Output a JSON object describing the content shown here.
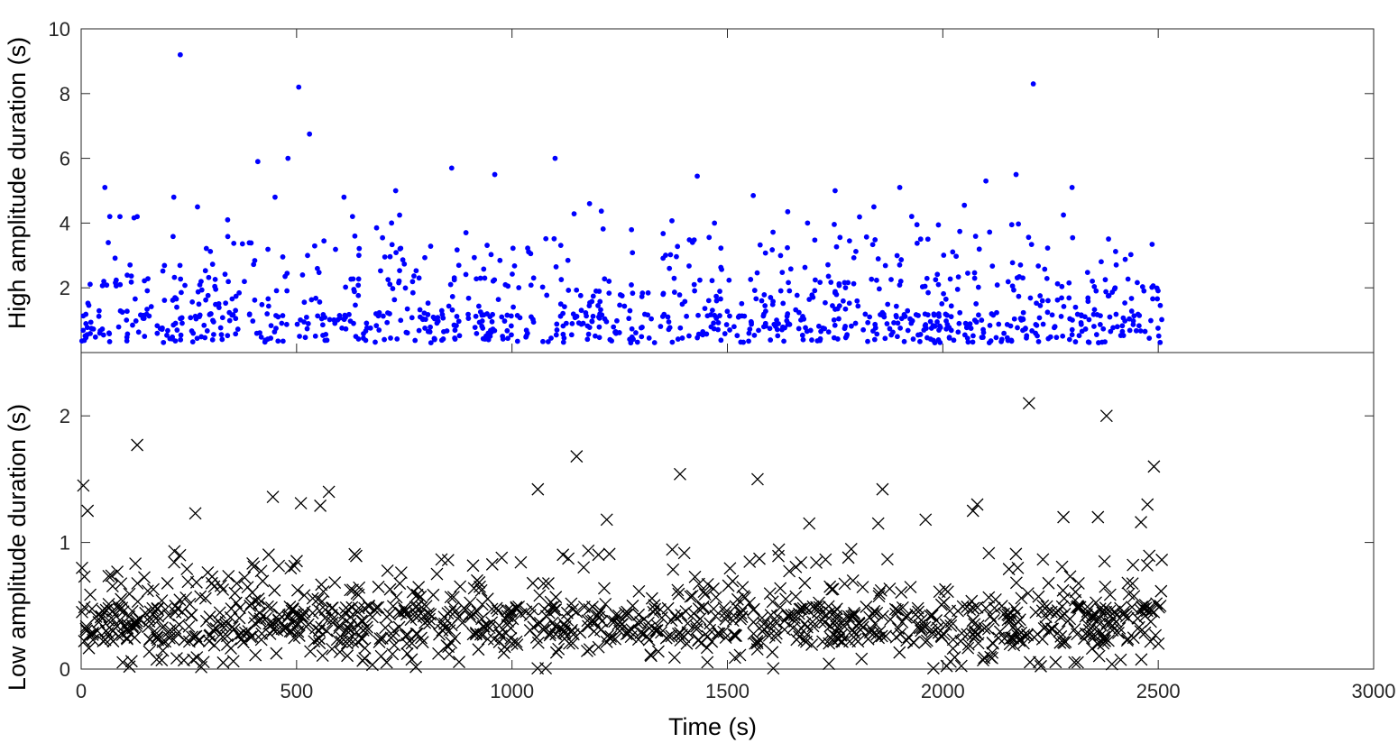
{
  "chart_data": [
    {
      "type": "scatter",
      "panel": "top",
      "ylabel": "High amplitude duration (s)",
      "xlim": [
        0,
        3000
      ],
      "ylim": [
        0,
        10
      ],
      "yticks": [
        2,
        4,
        6,
        8,
        10
      ],
      "marker": "dot",
      "color": "#0000ff",
      "x_range_of_points": [
        0,
        2510
      ],
      "outliers": [
        {
          "x": 230,
          "y": 9.2
        },
        {
          "x": 505,
          "y": 8.2
        },
        {
          "x": 2210,
          "y": 8.3
        },
        {
          "x": 530,
          "y": 6.75
        },
        {
          "x": 480,
          "y": 6.0
        },
        {
          "x": 410,
          "y": 5.9
        },
        {
          "x": 1100,
          "y": 6.0
        },
        {
          "x": 860,
          "y": 5.7
        },
        {
          "x": 960,
          "y": 5.5
        },
        {
          "x": 1430,
          "y": 5.45
        },
        {
          "x": 2170,
          "y": 5.5
        },
        {
          "x": 55,
          "y": 5.1
        },
        {
          "x": 2300,
          "y": 5.1
        },
        {
          "x": 1900,
          "y": 5.1
        },
        {
          "x": 2100,
          "y": 5.3
        },
        {
          "x": 1560,
          "y": 4.85
        },
        {
          "x": 610,
          "y": 4.8
        },
        {
          "x": 215,
          "y": 4.8
        },
        {
          "x": 450,
          "y": 4.8
        },
        {
          "x": 730,
          "y": 5.0
        },
        {
          "x": 1750,
          "y": 5.0
        },
        {
          "x": 2050,
          "y": 4.55
        },
        {
          "x": 1180,
          "y": 4.6
        },
        {
          "x": 1840,
          "y": 4.5
        },
        {
          "x": 270,
          "y": 4.5
        },
        {
          "x": 90,
          "y": 4.2
        },
        {
          "x": 130,
          "y": 4.2
        },
        {
          "x": 340,
          "y": 4.1
        },
        {
          "x": 1640,
          "y": 4.35
        },
        {
          "x": 2160,
          "y": 3.95
        },
        {
          "x": 1940,
          "y": 3.95
        },
        {
          "x": 1470,
          "y": 4.0
        },
        {
          "x": 2280,
          "y": 4.25
        }
      ]
    },
    {
      "type": "scatter",
      "panel": "bottom",
      "ylabel": "Low amplitude duration (s)",
      "xlabel": "Time (s)",
      "xlim": [
        0,
        3000
      ],
      "ylim": [
        0,
        2.5
      ],
      "xticks": [
        0,
        500,
        1000,
        1500,
        2000,
        2500,
        3000
      ],
      "yticks": [
        0,
        1,
        2
      ],
      "marker": "x",
      "color": "#000000",
      "x_range_of_points": [
        0,
        2510
      ],
      "outliers": [
        {
          "x": 2200,
          "y": 2.1
        },
        {
          "x": 2380,
          "y": 2.0
        },
        {
          "x": 130,
          "y": 1.77
        },
        {
          "x": 1150,
          "y": 1.68
        },
        {
          "x": 2490,
          "y": 1.6
        },
        {
          "x": 1390,
          "y": 1.54
        },
        {
          "x": 1570,
          "y": 1.5
        },
        {
          "x": 5,
          "y": 1.45
        },
        {
          "x": 1060,
          "y": 1.42
        },
        {
          "x": 1860,
          "y": 1.42
        },
        {
          "x": 575,
          "y": 1.4
        },
        {
          "x": 445,
          "y": 1.36
        },
        {
          "x": 510,
          "y": 1.31
        },
        {
          "x": 555,
          "y": 1.29
        },
        {
          "x": 2080,
          "y": 1.3
        },
        {
          "x": 2475,
          "y": 1.3
        },
        {
          "x": 15,
          "y": 1.25
        },
        {
          "x": 265,
          "y": 1.23
        },
        {
          "x": 2070,
          "y": 1.25
        },
        {
          "x": 2280,
          "y": 1.2
        },
        {
          "x": 1220,
          "y": 1.18
        },
        {
          "x": 1690,
          "y": 1.15
        },
        {
          "x": 1850,
          "y": 1.15
        },
        {
          "x": 1960,
          "y": 1.18
        },
        {
          "x": 2360,
          "y": 1.2
        },
        {
          "x": 2460,
          "y": 1.16
        }
      ]
    }
  ]
}
